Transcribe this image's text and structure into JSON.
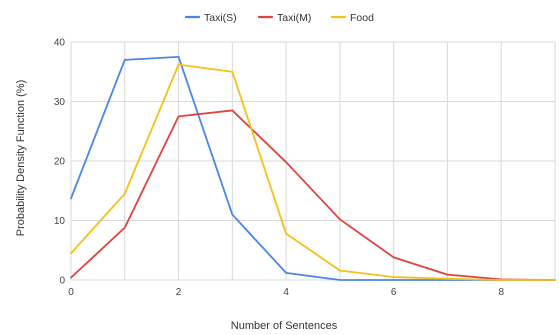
{
  "chart_data": {
    "type": "line",
    "xlabel": "Number of Sentences",
    "ylabel": "Probability Density Function (%)",
    "xlim": [
      0,
      9
    ],
    "ylim": [
      0,
      40
    ],
    "xticks": [
      "0",
      "2",
      "4",
      "6",
      "8"
    ],
    "yticks": [
      "0",
      "10",
      "20",
      "30",
      "40"
    ],
    "grid": true,
    "legend": "top",
    "x": [
      0,
      1,
      2,
      3,
      4,
      5,
      6,
      7,
      8,
      9
    ],
    "series": [
      {
        "name": "Taxi(S)",
        "color": "#4a86e8",
        "values": [
          13.7,
          37.0,
          37.5,
          11.0,
          1.2,
          0.0,
          0.0,
          0.0,
          0.0,
          0.0
        ]
      },
      {
        "name": "Taxi(M)",
        "color": "#e0423c",
        "values": [
          0.4,
          8.8,
          27.5,
          28.5,
          19.8,
          10.2,
          3.8,
          0.9,
          0.1,
          0.0
        ]
      },
      {
        "name": "Food",
        "color": "#f5c018",
        "values": [
          4.5,
          14.5,
          36.2,
          35.0,
          7.8,
          1.6,
          0.5,
          0.2,
          0.0,
          0.0
        ]
      }
    ]
  }
}
